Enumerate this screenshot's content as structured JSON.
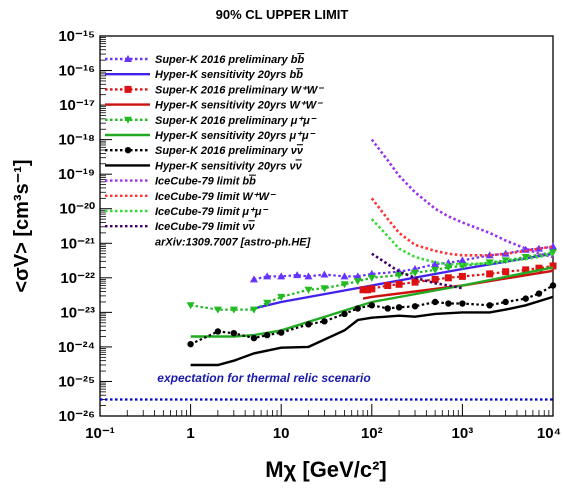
{
  "chart_data": {
    "type": "line",
    "title": "90% CL UPPER LIMIT",
    "xlabel": "Mχ [GeV/c²]",
    "ylabel": "<σV> [cm³s⁻¹]",
    "x_scale": "log",
    "y_scale": "log",
    "xlim": [
      0.1,
      10000
    ],
    "ylim": [
      1e-26,
      1e-15
    ],
    "x_ticks": [
      {
        "value": 0.1,
        "label": "10⁻¹"
      },
      {
        "value": 1,
        "label": "1"
      },
      {
        "value": 10,
        "label": "10"
      },
      {
        "value": 100,
        "label": "10²"
      },
      {
        "value": 1000,
        "label": "10³"
      },
      {
        "value": 10000,
        "label": "10⁴"
      }
    ],
    "y_ticks": [
      {
        "value": 1e-26,
        "label": "10⁻²⁶"
      },
      {
        "value": 1e-25,
        "label": "10⁻²⁵"
      },
      {
        "value": 1e-24,
        "label": "10⁻²⁴"
      },
      {
        "value": 1e-23,
        "label": "10⁻²³"
      },
      {
        "value": 1e-22,
        "label": "10⁻²²"
      },
      {
        "value": 1e-21,
        "label": "10⁻²¹"
      },
      {
        "value": 1e-20,
        "label": "10⁻²⁰"
      },
      {
        "value": 1e-19,
        "label": "10⁻¹⁹"
      },
      {
        "value": 1e-18,
        "label": "10⁻¹⁸"
      },
      {
        "value": 1e-17,
        "label": "10⁻¹⁷"
      },
      {
        "value": 1e-16,
        "label": "10⁻¹⁶"
      },
      {
        "value": 1e-15,
        "label": "10⁻¹⁵"
      }
    ],
    "grid": false,
    "legend_position": "top-left",
    "series": [
      {
        "name": "Super-K 2016 preliminary b̅b",
        "color": "#6633ff",
        "dash": "dotted",
        "marker": "triangle-up",
        "x": [
          5,
          7,
          10,
          15,
          20,
          30,
          50,
          70,
          100,
          200,
          300,
          500,
          700,
          1000,
          2000,
          3000,
          5000,
          7000,
          10000
        ],
        "y": [
          9e-23,
          1.1e-22,
          1.1e-22,
          1.2e-22,
          1.1e-22,
          1.25e-22,
          1.1e-22,
          1.1e-22,
          1.3e-22,
          1.5e-22,
          1.8e-22,
          2.5e-22,
          2.7e-22,
          3.2e-22,
          4.5e-22,
          5e-22,
          6.5e-22,
          7e-22,
          8e-22
        ]
      },
      {
        "name": "Hyper-K sensitivity 20yrs b̅b",
        "color": "#4422ee",
        "dash": "solid",
        "marker": "none",
        "x": [
          5,
          10,
          100,
          1000,
          10000
        ],
        "y": [
          1.3e-23,
          2e-23,
          6e-23,
          1.8e-22,
          5e-22
        ]
      },
      {
        "name": "Super-K 2016 preliminary W⁺W⁻",
        "color": "#dd1111",
        "dash": "dotted",
        "marker": "square",
        "x": [
          80,
          90,
          100,
          150,
          200,
          300,
          500,
          700,
          1000,
          2000,
          3000,
          5000,
          7000,
          10000
        ],
        "y": [
          4.5e-23,
          4.5e-23,
          4.8e-23,
          6e-23,
          6.5e-23,
          7.5e-23,
          9e-23,
          1e-22,
          1.1e-22,
          1.3e-22,
          1.5e-22,
          1.7e-22,
          1.9e-22,
          2.2e-22
        ]
      },
      {
        "name": "Hyper-K sensitivity 20yrs W⁺W⁻",
        "color": "#cc1111",
        "dash": "solid",
        "marker": "none",
        "x": [
          80,
          100,
          1000,
          10000
        ],
        "y": [
          2.5e-23,
          2.8e-23,
          6e-23,
          1.6e-22
        ]
      },
      {
        "name": "Super-K 2016 preliminary μ⁺μ⁻",
        "color": "#22bb22",
        "dash": "dotted",
        "marker": "triangle-down",
        "x": [
          1,
          2,
          3,
          5,
          7,
          10,
          20,
          30,
          50,
          70,
          100,
          200,
          300,
          500,
          700,
          1000,
          2000,
          3000,
          5000,
          10000
        ],
        "y": [
          1.6e-23,
          1.2e-23,
          1.2e-23,
          1.2e-23,
          1.9e-23,
          2.8e-23,
          4.5e-23,
          5e-23,
          6.5e-23,
          8e-23,
          1e-22,
          1.2e-22,
          1.4e-22,
          1.7e-22,
          2e-22,
          2.2e-22,
          2.8e-22,
          3.2e-22,
          4e-22,
          5.5e-22
        ]
      },
      {
        "name": "Hyper-K sensitivity 20yrs μ⁺μ⁻",
        "color": "#22aa22",
        "dash": "solid",
        "marker": "none",
        "x": [
          1,
          3,
          5,
          10,
          100,
          1000,
          10000
        ],
        "y": [
          2e-24,
          2e-24,
          2.2e-24,
          3e-24,
          2e-23,
          6e-23,
          2e-22
        ]
      },
      {
        "name": "Super-K 2016 preliminary νν̅",
        "color": "#000000",
        "dash": "dotted",
        "marker": "circle",
        "x": [
          1,
          2,
          3,
          5,
          7,
          10,
          20,
          30,
          50,
          70,
          100,
          150,
          200,
          300,
          500,
          700,
          1000,
          2000,
          3000,
          5000,
          7000,
          10000
        ],
        "y": [
          1.2e-24,
          2.8e-24,
          2.5e-24,
          1.8e-24,
          2.2e-24,
          2.6e-24,
          4.5e-24,
          5.5e-24,
          9e-24,
          1.3e-23,
          1.6e-23,
          1.3e-23,
          1.4e-23,
          1.5e-23,
          2e-23,
          1.8e-23,
          1.8e-23,
          1.6e-23,
          2e-23,
          2.5e-23,
          3.5e-23,
          6e-23
        ]
      },
      {
        "name": "Hyper-K sensitivity 20yrs νν̅",
        "color": "#000000",
        "dash": "solid",
        "marker": "none",
        "x": [
          1,
          2,
          3,
          5,
          10,
          20,
          50,
          70,
          100,
          200,
          300,
          500,
          1000,
          2000,
          3000,
          5000,
          10000
        ],
        "y": [
          3e-25,
          3e-25,
          4e-25,
          6.5e-25,
          9.5e-25,
          1e-24,
          3e-24,
          6e-24,
          7e-24,
          8e-24,
          7.5e-24,
          9e-24,
          1e-23,
          1e-23,
          1.2e-23,
          1.6e-23,
          2.8e-23
        ]
      },
      {
        "name": "IceCube-79 limit b̅b",
        "color": "#9933ee",
        "dash": "dotted",
        "marker": "none",
        "x": [
          100,
          150,
          200,
          300,
          500,
          700,
          1000,
          2000,
          3000,
          5000,
          7000,
          10000
        ],
        "y": [
          1e-18,
          2.5e-19,
          9e-20,
          3e-20,
          1e-20,
          6e-21,
          4e-21,
          2e-21,
          1.2e-21,
          7e-22,
          5e-22,
          4e-22
        ]
      },
      {
        "name": "IceCube-79 limit W⁺W⁻",
        "color": "#ff3333",
        "dash": "dotted",
        "marker": "none",
        "x": [
          100,
          150,
          200,
          300,
          500,
          700,
          1000,
          2000,
          3000,
          5000,
          7000,
          10000
        ],
        "y": [
          2e-20,
          5e-21,
          2e-21,
          9e-22,
          6e-22,
          5e-22,
          4.5e-22,
          4.5e-22,
          5e-22,
          6e-22,
          7e-22,
          8e-22
        ]
      },
      {
        "name": "IceCube-79 limit μ⁺μ⁻",
        "color": "#33dd33",
        "dash": "dotted",
        "marker": "none",
        "x": [
          100,
          150,
          200,
          300,
          500,
          700,
          1000,
          2000,
          3000,
          5000,
          7000,
          10000
        ],
        "y": [
          5e-21,
          1.6e-21,
          7e-22,
          4e-22,
          2.8e-22,
          2.5e-22,
          2.5e-22,
          2.6e-22,
          3e-22,
          3.5e-22,
          4e-22,
          5e-22
        ]
      },
      {
        "name": "IceCube-79 limit νν̅",
        "color": "#440066",
        "dash": "dotted",
        "marker": "none",
        "x": [
          100,
          150,
          200,
          300,
          500,
          700,
          1000
        ],
        "y": [
          5e-22,
          2.5e-22,
          1.5e-22,
          1e-22,
          7e-23,
          6e-23,
          5e-23
        ]
      },
      {
        "name": "",
        "color": "#0000cc",
        "dash": "dotted",
        "marker": "none",
        "x": [
          0.1,
          10000
        ],
        "y": [
          3e-26,
          3e-26
        ]
      }
    ],
    "legend_entries": [
      {
        "label": "Super-K 2016 preliminary b",
        "bar": "b",
        "color": "#6633ff",
        "dash": "dotted",
        "marker": "triangle-up"
      },
      {
        "label": "Hyper-K sensitivity 20yrs b",
        "bar": "b",
        "color": "#4422ee",
        "dash": "solid",
        "marker": "none"
      },
      {
        "label": "Super-K 2016 preliminary W⁺W⁻",
        "bar": "",
        "color": "#dd1111",
        "dash": "dotted",
        "marker": "square"
      },
      {
        "label": "Hyper-K sensitivity 20yrs W⁺W⁻",
        "bar": "",
        "color": "#cc1111",
        "dash": "solid",
        "marker": "none"
      },
      {
        "label": "Super-K 2016 preliminary μ⁺μ⁻",
        "bar": "",
        "color": "#22bb22",
        "dash": "dotted",
        "marker": "triangle-down"
      },
      {
        "label": "Hyper-K sensitivity 20yrs μ⁺μ⁻",
        "bar": "",
        "color": "#22aa22",
        "dash": "solid",
        "marker": "none"
      },
      {
        "label": "Super-K 2016 preliminary ν",
        "bar": "ν",
        "color": "#000000",
        "dash": "dotted",
        "marker": "circle"
      },
      {
        "label": "Hyper-K sensitivity 20yrs ν",
        "bar": "ν",
        "color": "#000000",
        "dash": "solid",
        "marker": "none"
      },
      {
        "label": "IceCube-79 limit b",
        "bar": "b",
        "color": "#9933ee",
        "dash": "dotted",
        "marker": "none"
      },
      {
        "label": "IceCube-79 limit W⁺W⁻",
        "bar": "",
        "color": "#ff3333",
        "dash": "dotted",
        "marker": "none"
      },
      {
        "label": "IceCube-79 limit μ⁺μ⁻",
        "bar": "",
        "color": "#33dd33",
        "dash": "dotted",
        "marker": "none"
      },
      {
        "label": "IceCube-79 limit ν",
        "bar": "ν",
        "color": "#440066",
        "dash": "dotted",
        "marker": "none"
      }
    ],
    "legend_note": "arXiv:1309.7007 [astro-ph.HE]",
    "annotation": {
      "text": "expectation for thermal relic scenario",
      "color": "#1a1aaa"
    }
  }
}
